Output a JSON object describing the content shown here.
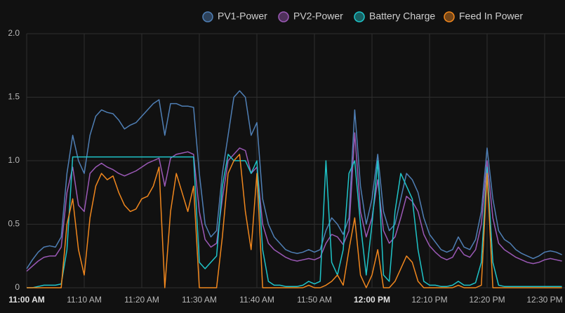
{
  "chart_data": {
    "type": "line",
    "x": [
      "11:00 AM",
      "11:01 AM",
      "11:02 AM",
      "11:03 AM",
      "11:04 AM",
      "11:05 AM",
      "11:06 AM",
      "11:07 AM",
      "11:08 AM",
      "11:09 AM",
      "11:10 AM",
      "11:11 AM",
      "11:12 AM",
      "11:13 AM",
      "11:14 AM",
      "11:15 AM",
      "11:16 AM",
      "11:17 AM",
      "11:18 AM",
      "11:19 AM",
      "11:20 AM",
      "11:21 AM",
      "11:22 AM",
      "11:23 AM",
      "11:24 AM",
      "11:25 AM",
      "11:26 AM",
      "11:27 AM",
      "11:28 AM",
      "11:29 AM",
      "11:30 AM",
      "11:31 AM",
      "11:32 AM",
      "11:33 AM",
      "11:34 AM",
      "11:35 AM",
      "11:36 AM",
      "11:37 AM",
      "11:38 AM",
      "11:39 AM",
      "11:40 AM",
      "11:41 AM",
      "11:42 AM",
      "11:43 AM",
      "11:44 AM",
      "11:45 AM",
      "11:46 AM",
      "11:47 AM",
      "11:48 AM",
      "11:49 AM",
      "11:50 AM",
      "11:51 AM",
      "11:52 AM",
      "11:53 AM",
      "11:54 AM",
      "11:55 AM",
      "11:56 AM",
      "11:57 AM",
      "11:58 AM",
      "11:59 AM",
      "12:00 PM",
      "12:01 PM",
      "12:02 PM",
      "12:03 PM",
      "12:04 PM",
      "12:05 PM",
      "12:06 PM",
      "12:07 PM",
      "12:08 PM",
      "12:09 PM",
      "12:10 PM",
      "12:11 PM",
      "12:12 PM",
      "12:13 PM",
      "12:14 PM",
      "12:15 PM",
      "12:16 PM",
      "12:17 PM",
      "12:18 PM",
      "12:19 PM",
      "12:20 PM",
      "12:21 PM",
      "12:22 PM",
      "12:23 PM",
      "12:24 PM",
      "12:25 PM",
      "12:26 PM",
      "12:27 PM",
      "12:28 PM",
      "12:29 PM",
      "12:30 PM",
      "12:31 PM",
      "12:32 PM",
      "12:33 PM"
    ],
    "xticks": [
      "11:00 AM",
      "11:10 AM",
      "11:20 AM",
      "11:30 AM",
      "11:40 AM",
      "11:50 AM",
      "12:00 PM",
      "12:10 PM",
      "12:20 PM",
      "12:30 PM"
    ],
    "ylim": [
      0,
      2
    ],
    "yticks": [
      0,
      0.5,
      {
        "value": 1,
        "label": "1.0"
      },
      1.5,
      {
        "value": 2,
        "label": "2.0"
      }
    ],
    "grid": true,
    "series": [
      {
        "name": "PV1-Power",
        "color": "#4f7fb5",
        "values": [
          0.15,
          0.22,
          0.28,
          0.32,
          0.33,
          0.32,
          0.4,
          0.9,
          1.2,
          1.0,
          0.9,
          1.2,
          1.35,
          1.4,
          1.38,
          1.37,
          1.32,
          1.25,
          1.28,
          1.3,
          1.35,
          1.4,
          1.45,
          1.48,
          1.2,
          1.45,
          1.45,
          1.43,
          1.43,
          1.42,
          0.9,
          0.5,
          0.4,
          0.45,
          0.9,
          1.2,
          1.5,
          1.55,
          1.5,
          1.2,
          1.3,
          0.7,
          0.5,
          0.4,
          0.35,
          0.3,
          0.28,
          0.27,
          0.28,
          0.3,
          0.28,
          0.3,
          0.45,
          0.55,
          0.5,
          0.42,
          0.55,
          1.4,
          0.8,
          0.5,
          0.7,
          1.05,
          0.6,
          0.45,
          0.5,
          0.7,
          0.9,
          0.85,
          0.75,
          0.55,
          0.42,
          0.36,
          0.3,
          0.28,
          0.3,
          0.4,
          0.32,
          0.3,
          0.38,
          0.6,
          1.1,
          0.7,
          0.45,
          0.38,
          0.35,
          0.3,
          0.27,
          0.25,
          0.23,
          0.25,
          0.28,
          0.29,
          0.28,
          0.26
        ]
      },
      {
        "name": "PV2-Power",
        "color": "#9b59b6",
        "values": [
          0.13,
          0.17,
          0.21,
          0.24,
          0.25,
          0.25,
          0.32,
          0.75,
          0.95,
          0.65,
          0.6,
          0.9,
          0.95,
          0.98,
          0.95,
          0.93,
          0.9,
          0.88,
          0.9,
          0.92,
          0.95,
          0.98,
          1.0,
          1.02,
          0.8,
          1.02,
          1.05,
          1.06,
          1.07,
          1.05,
          0.6,
          0.38,
          0.32,
          0.35,
          0.7,
          1.0,
          1.05,
          1.1,
          1.08,
          0.9,
          0.95,
          0.5,
          0.35,
          0.3,
          0.27,
          0.24,
          0.22,
          0.21,
          0.22,
          0.23,
          0.22,
          0.24,
          0.35,
          0.42,
          0.4,
          0.34,
          0.45,
          1.22,
          0.6,
          0.4,
          0.55,
          0.85,
          0.45,
          0.35,
          0.4,
          0.55,
          0.72,
          0.68,
          0.6,
          0.42,
          0.33,
          0.28,
          0.24,
          0.22,
          0.24,
          0.32,
          0.26,
          0.24,
          0.3,
          0.5,
          1.0,
          0.55,
          0.35,
          0.3,
          0.27,
          0.24,
          0.22,
          0.2,
          0.19,
          0.2,
          0.22,
          0.23,
          0.22,
          0.21
        ]
      },
      {
        "name": "Battery Charge",
        "color": "#1fc4c8",
        "values": [
          0.0,
          0.0,
          0.01,
          0.02,
          0.02,
          0.02,
          0.03,
          0.3,
          1.03,
          1.03,
          1.03,
          1.03,
          1.03,
          1.03,
          1.03,
          1.03,
          1.03,
          1.03,
          1.03,
          1.03,
          1.03,
          1.03,
          1.03,
          1.03,
          1.03,
          1.03,
          1.03,
          1.03,
          1.03,
          1.03,
          0.2,
          0.15,
          0.2,
          0.25,
          0.8,
          1.05,
          1.0,
          1.0,
          1.0,
          0.9,
          1.0,
          0.3,
          0.05,
          0.02,
          0.02,
          0.01,
          0.01,
          0.01,
          0.02,
          0.05,
          0.03,
          0.05,
          1.0,
          0.2,
          0.1,
          0.3,
          0.9,
          1.0,
          0.5,
          0.1,
          0.5,
          1.0,
          0.1,
          0.05,
          0.6,
          0.9,
          0.8,
          0.7,
          0.3,
          0.05,
          0.02,
          0.02,
          0.01,
          0.01,
          0.02,
          0.05,
          0.02,
          0.02,
          0.04,
          0.2,
          0.95,
          0.2,
          0.02,
          0.01,
          0.01,
          0.01,
          0.01,
          0.01,
          0.01,
          0.01,
          0.01,
          0.01,
          0.01,
          0.01
        ]
      },
      {
        "name": "Feed In Power",
        "color": "#f0871e",
        "values": [
          0.0,
          0.0,
          0.0,
          0.0,
          0.0,
          0.0,
          0.0,
          0.5,
          0.7,
          0.3,
          0.1,
          0.55,
          0.8,
          0.9,
          0.85,
          0.88,
          0.75,
          0.65,
          0.6,
          0.62,
          0.7,
          0.72,
          0.8,
          0.95,
          0.0,
          0.6,
          0.9,
          0.75,
          0.6,
          0.8,
          0.0,
          0.0,
          0.0,
          0.0,
          0.4,
          0.9,
          1.0,
          1.05,
          0.6,
          0.3,
          0.9,
          0.0,
          0.0,
          0.0,
          0.0,
          0.0,
          0.0,
          0.0,
          0.0,
          0.02,
          0.0,
          0.0,
          0.02,
          0.05,
          0.1,
          0.02,
          0.3,
          0.55,
          0.1,
          0.0,
          0.1,
          0.3,
          0.0,
          0.0,
          0.05,
          0.15,
          0.25,
          0.2,
          0.05,
          0.0,
          0.0,
          0.0,
          0.0,
          0.0,
          0.0,
          0.02,
          0.0,
          0.0,
          0.0,
          0.02,
          0.9,
          0.0,
          0.0,
          0.0,
          0.0,
          0.0,
          0.0,
          0.0,
          0.0,
          0.0,
          0.0,
          0.0,
          0.0,
          0.0
        ]
      }
    ]
  }
}
